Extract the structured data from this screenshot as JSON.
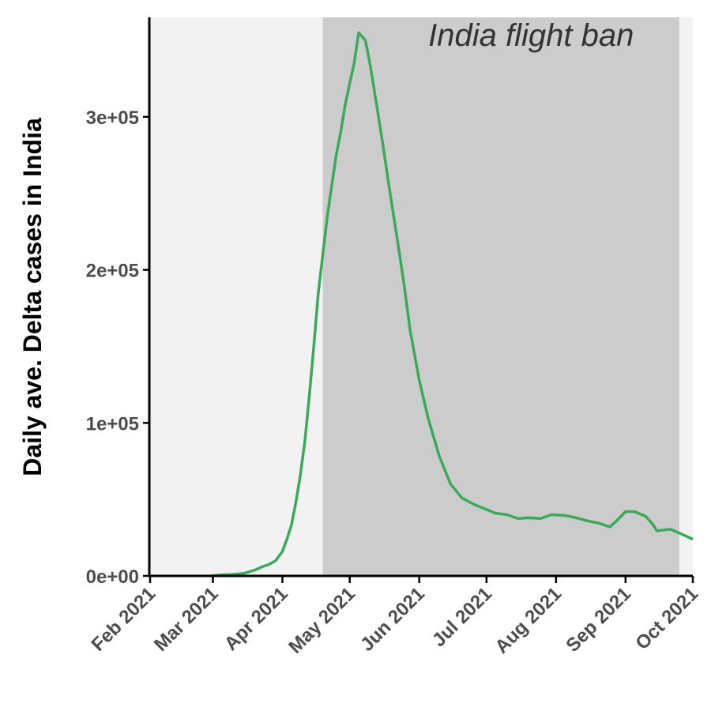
{
  "chart_data": {
    "type": "line",
    "ylabel": "Daily ave. Delta cases in India",
    "xlabel": "",
    "x_ticks": [
      "2021-02-01",
      "2021-03-01",
      "2021-04-01",
      "2021-05-01",
      "2021-06-01",
      "2021-07-01",
      "2021-08-01",
      "2021-09-01",
      "2021-10-01"
    ],
    "x_tick_labels": [
      "Feb 2021",
      "Mar 2021",
      "Apr 2021",
      "May 2021",
      "Jun 2021",
      "Jul 2021",
      "Aug 2021",
      "Sep 2021",
      "Oct 2021"
    ],
    "xlim": [
      "2021-02-01",
      "2021-10-01"
    ],
    "y_ticks": [
      0,
      100000,
      200000,
      300000
    ],
    "y_tick_labels": [
      "0e+00",
      "1e+05",
      "2e+05",
      "3e+05"
    ],
    "ylim": [
      0,
      365000
    ],
    "annotation": {
      "text": "India flight ban",
      "start": "2021-04-19",
      "end": "2021-09-25"
    },
    "colors": {
      "line": "#3aaa5a",
      "ban_region": "#cccccc",
      "background": "#f2f2f2"
    },
    "series": [
      {
        "points": [
          [
            "2021-02-28",
            0
          ],
          [
            "2021-03-05",
            700
          ],
          [
            "2021-03-10",
            1000
          ],
          [
            "2021-03-15",
            1700
          ],
          [
            "2021-03-20",
            4000
          ],
          [
            "2021-03-23",
            6000
          ],
          [
            "2021-03-26",
            7500
          ],
          [
            "2021-03-29",
            10000
          ],
          [
            "2021-04-01",
            16000
          ],
          [
            "2021-04-03",
            24000
          ],
          [
            "2021-04-05",
            33000
          ],
          [
            "2021-04-07",
            48000
          ],
          [
            "2021-04-09",
            66000
          ],
          [
            "2021-04-11",
            88000
          ],
          [
            "2021-04-13",
            118000
          ],
          [
            "2021-04-15",
            150000
          ],
          [
            "2021-04-17",
            185000
          ],
          [
            "2021-04-19",
            210000
          ],
          [
            "2021-04-21",
            235000
          ],
          [
            "2021-04-23",
            255000
          ],
          [
            "2021-04-25",
            275000
          ],
          [
            "2021-04-27",
            290000
          ],
          [
            "2021-04-29",
            308000
          ],
          [
            "2021-05-01",
            322000
          ],
          [
            "2021-05-03",
            335000
          ],
          [
            "2021-05-05",
            355000
          ],
          [
            "2021-05-08",
            350000
          ],
          [
            "2021-05-10",
            335000
          ],
          [
            "2021-05-13",
            308000
          ],
          [
            "2021-05-16",
            280000
          ],
          [
            "2021-05-19",
            250000
          ],
          [
            "2021-05-22",
            222000
          ],
          [
            "2021-05-25",
            193000
          ],
          [
            "2021-05-28",
            160000
          ],
          [
            "2021-06-01",
            128000
          ],
          [
            "2021-06-05",
            103000
          ],
          [
            "2021-06-10",
            78000
          ],
          [
            "2021-06-15",
            60000
          ],
          [
            "2021-06-20",
            51000
          ],
          [
            "2021-06-25",
            47000
          ],
          [
            "2021-06-30",
            44000
          ],
          [
            "2021-07-05",
            41000
          ],
          [
            "2021-07-10",
            40000
          ],
          [
            "2021-07-15",
            37500
          ],
          [
            "2021-07-20",
            38000
          ],
          [
            "2021-07-25",
            37500
          ],
          [
            "2021-07-30",
            40000
          ],
          [
            "2021-08-05",
            39500
          ],
          [
            "2021-08-10",
            38000
          ],
          [
            "2021-08-15",
            36000
          ],
          [
            "2021-08-20",
            34500
          ],
          [
            "2021-08-25",
            32000
          ],
          [
            "2021-08-28",
            36000
          ],
          [
            "2021-09-01",
            42000
          ],
          [
            "2021-09-05",
            42000
          ],
          [
            "2021-09-10",
            39000
          ],
          [
            "2021-09-13",
            34000
          ],
          [
            "2021-09-15",
            29500
          ],
          [
            "2021-09-18",
            30000
          ],
          [
            "2021-09-21",
            30500
          ],
          [
            "2021-09-25",
            28000
          ],
          [
            "2021-10-01",
            24000
          ]
        ]
      }
    ]
  }
}
